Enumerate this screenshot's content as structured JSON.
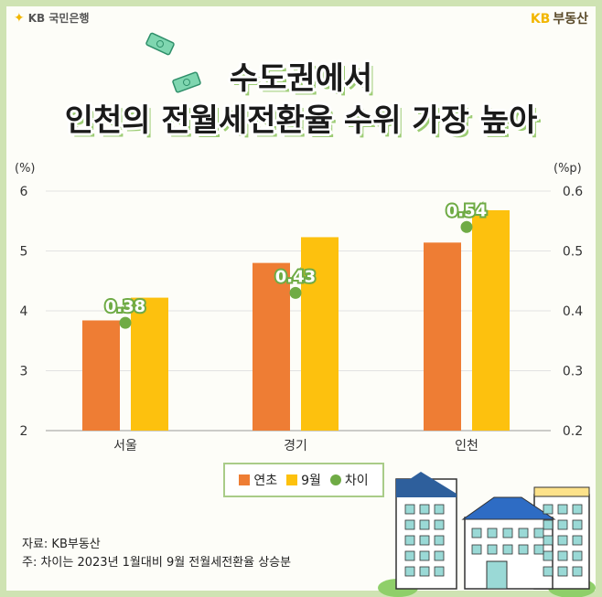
{
  "brand": {
    "left": "KB 국민은행",
    "right_kb": "KB",
    "right_name": "부동산"
  },
  "title": {
    "line1": "수도권에서",
    "line2": "인천의 전월세전환율 수위 가장 높아"
  },
  "colors": {
    "start": "#ee7d34",
    "sep": "#fdc10e",
    "diff": "#6fab45",
    "frame": "#cfe3b3"
  },
  "chart_data": {
    "type": "bar",
    "categories": [
      "서울",
      "경기",
      "인천"
    ],
    "series": [
      {
        "name": "연초",
        "values": [
          3.84,
          4.8,
          5.14
        ],
        "axis": "left"
      },
      {
        "name": "9월",
        "values": [
          4.22,
          5.23,
          5.68
        ],
        "axis": "left"
      },
      {
        "name": "차이",
        "values": [
          0.38,
          0.43,
          0.54
        ],
        "axis": "right",
        "mark": "point"
      }
    ],
    "y_left": {
      "label": "(%)",
      "min": 2,
      "max": 6,
      "ticks": [
        "6",
        "5",
        "4",
        "3",
        "2"
      ]
    },
    "y_right": {
      "label": "(%p)",
      "min": 0.2,
      "max": 0.6,
      "ticks": [
        "0.6",
        "0.5",
        "0.4",
        "0.3",
        "0.2"
      ]
    },
    "labels": [
      "0.38",
      "0.43",
      "0.54"
    ],
    "grid": true,
    "legend": [
      "연초",
      "9월",
      "차이"
    ]
  },
  "source": {
    "line1": "자료: KB부동산",
    "line2": "주: 차이는 2023년 1월대비 9월 전월세전환율 상승분"
  }
}
